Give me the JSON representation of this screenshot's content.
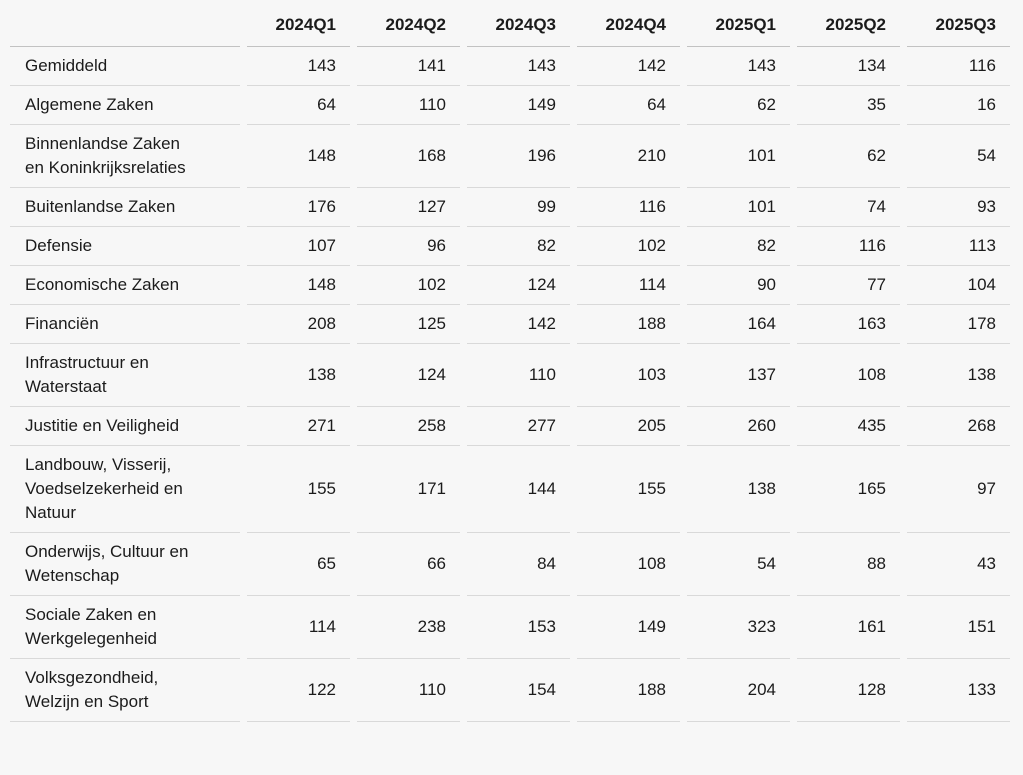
{
  "colors": {
    "background": "#f7f7f7",
    "row_border": "#d9d9d9",
    "header_border": "#c2c2c2",
    "text": "#1b1b1b"
  },
  "chart_data": {
    "type": "table",
    "title": "",
    "categories": [
      "2024Q1",
      "2024Q2",
      "2024Q3",
      "2024Q4",
      "2025Q1",
      "2025Q2",
      "2025Q3"
    ],
    "corner_label": "",
    "series": [
      {
        "name": "Gemiddeld",
        "label": "Gemiddeld",
        "values": [
          143,
          141,
          143,
          142,
          143,
          134,
          116
        ]
      },
      {
        "name": "Algemene Zaken",
        "label": "Algemene Zaken",
        "values": [
          64,
          110,
          149,
          64,
          62,
          35,
          16
        ]
      },
      {
        "name": "Binnenlandse Zaken en Koninkrijksrelaties",
        "label": "Binnenlandse Zaken\nen Koninkrijksrelaties",
        "values": [
          148,
          168,
          196,
          210,
          101,
          62,
          54
        ]
      },
      {
        "name": "Buitenlandse Zaken",
        "label": "Buitenlandse Zaken",
        "values": [
          176,
          127,
          99,
          116,
          101,
          74,
          93
        ]
      },
      {
        "name": "Defensie",
        "label": "Defensie",
        "values": [
          107,
          96,
          82,
          102,
          82,
          116,
          113
        ]
      },
      {
        "name": "Economische Zaken",
        "label": "Economische Zaken",
        "values": [
          148,
          102,
          124,
          114,
          90,
          77,
          104
        ]
      },
      {
        "name": "Financiën",
        "label": "Financiën",
        "values": [
          208,
          125,
          142,
          188,
          164,
          163,
          178
        ]
      },
      {
        "name": "Infrastructuur en Waterstaat",
        "label": "Infrastructuur en\nWaterstaat",
        "values": [
          138,
          124,
          110,
          103,
          137,
          108,
          138
        ]
      },
      {
        "name": "Justitie en Veiligheid",
        "label": "Justitie en Veiligheid",
        "values": [
          271,
          258,
          277,
          205,
          260,
          435,
          268
        ]
      },
      {
        "name": "Landbouw, Visserij, Voedselzekerheid en Natuur",
        "label": "Landbouw, Visserij,\nVoedselzekerheid en\nNatuur",
        "values": [
          155,
          171,
          144,
          155,
          138,
          165,
          97
        ]
      },
      {
        "name": "Onderwijs, Cultuur en Wetenschap",
        "label": "Onderwijs, Cultuur en\nWetenschap",
        "values": [
          65,
          66,
          84,
          108,
          54,
          88,
          43
        ]
      },
      {
        "name": "Sociale Zaken en Werkgelegenheid",
        "label": "Sociale Zaken en\nWerkgelegenheid",
        "values": [
          114,
          238,
          153,
          149,
          323,
          161,
          151
        ]
      },
      {
        "name": "Volksgezondheid, Welzijn en Sport",
        "label": "Volksgezondheid,\nWelzijn en Sport",
        "values": [
          122,
          110,
          154,
          188,
          204,
          128,
          133
        ]
      }
    ],
    "layout": {
      "legend": "none",
      "grid": "horizontal-row-separators",
      "header_position": "top",
      "value_alignment": "right"
    }
  }
}
